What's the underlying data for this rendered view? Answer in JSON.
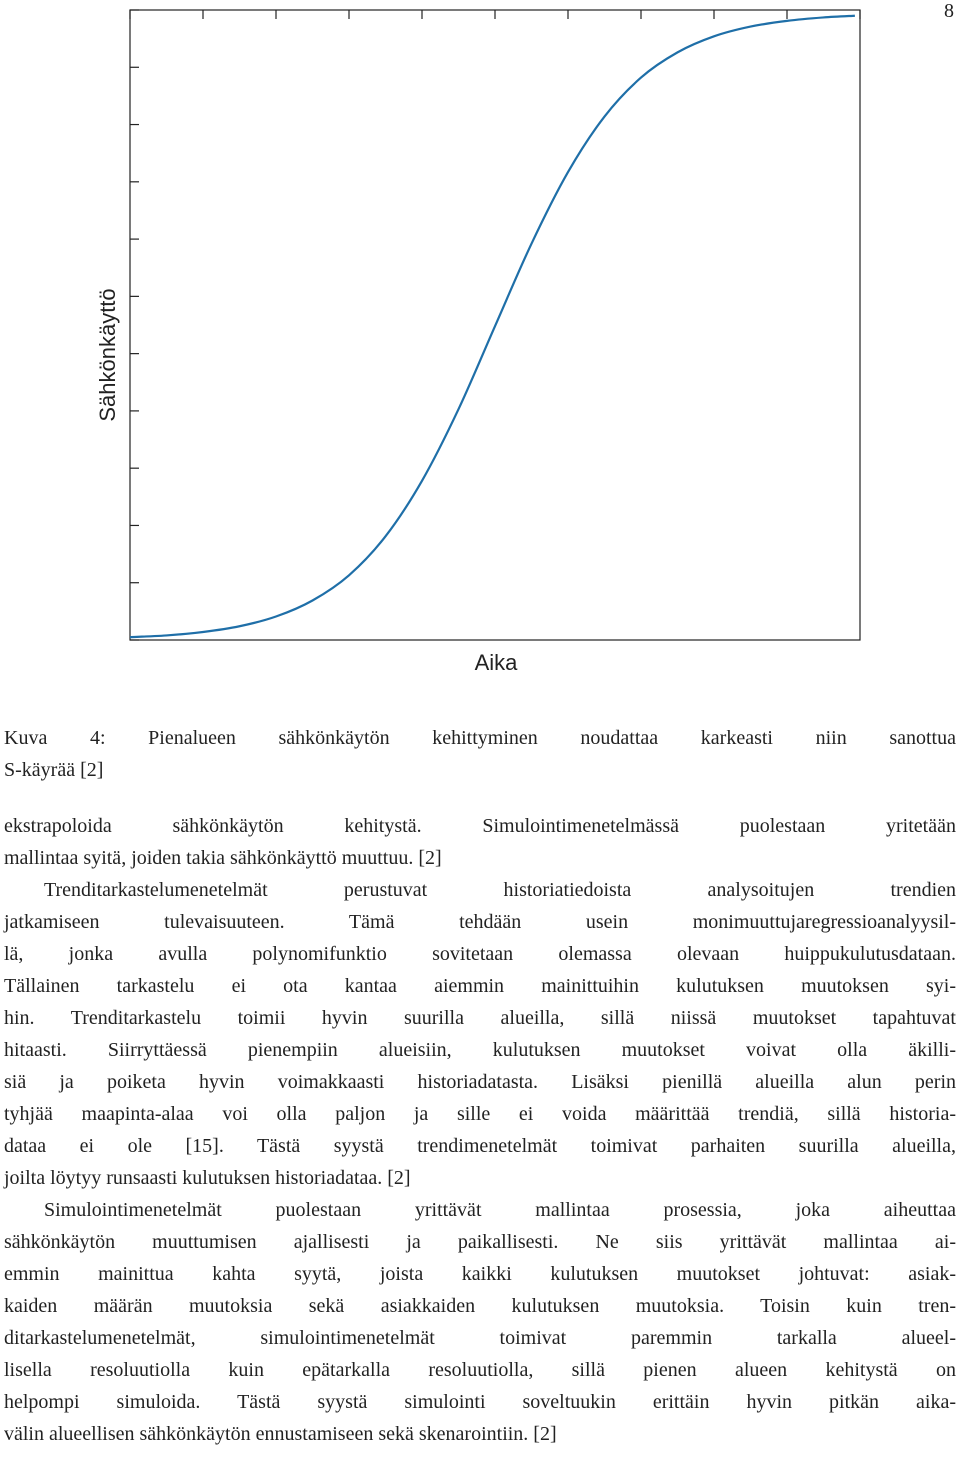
{
  "page_number": "8",
  "chart_data": {
    "type": "line",
    "xlabel": "Aika",
    "ylabel": "Sähkönkäyttö",
    "x": [
      0,
      0.5,
      1,
      1.5,
      2,
      2.5,
      3,
      3.5,
      4,
      4.5,
      5,
      5.5,
      6,
      6.5,
      7,
      7.5,
      8,
      8.5,
      9,
      9.5,
      9.93
    ],
    "values": [
      0.05,
      0.08,
      0.14,
      0.24,
      0.41,
      0.69,
      1.13,
      1.81,
      2.78,
      4.03,
      5.48,
      6.92,
      8.17,
      9.14,
      9.82,
      10.26,
      10.54,
      10.71,
      10.81,
      10.87,
      10.9
    ],
    "color": "#1f6fa8",
    "xlim": [
      0,
      10
    ],
    "ylim": [
      0,
      11
    ],
    "xticks": [
      0,
      1,
      2,
      3,
      4,
      5,
      6,
      7,
      8,
      9,
      10
    ],
    "yticks": [
      0,
      1,
      2,
      3,
      4,
      5,
      6,
      7,
      8,
      9,
      10,
      11
    ]
  },
  "caption": {
    "lines": [
      "Kuva 4: Pienalueen sähkönkäytön kehittyminen noudattaa karkeasti niin sanottua",
      "S-käyrää [2]"
    ]
  },
  "paragraphs": [
    {
      "lines": [
        "ekstrapoloida sähkönkäytön kehitystä. Simulointimenetelmässä puolestaan yritetään",
        "mallintaa syitä, joiden takia sähkönkäyttö muuttuu. [2]"
      ]
    },
    {
      "lines": [
        "Trenditarkastelumenetelmät perustuvat historiatiedoista analysoitujen trendien",
        "jatkamiseen tulevaisuuteen. Tämä tehdään usein monimuuttujaregressioanalyysil-",
        "lä, jonka avulla polynomifunktio sovitetaan olemassa olevaan huippukulutusdataan.",
        "Tällainen tarkastelu ei ota kantaa aiemmin mainittuihin kulutuksen muutoksen syi-",
        "hin. Trenditarkastelu toimii hyvin suurilla alueilla, sillä niissä muutokset tapahtuvat",
        "hitaasti. Siirryttäessä pienempiin alueisiin, kulutuksen muutokset voivat olla äkilli-",
        "siä ja poiketa hyvin voimakkaasti historiadatasta. Lisäksi pienillä alueilla alun perin",
        "tyhjää maapinta-alaa voi olla paljon ja sille ei voida määrittää trendiä, sillä historia-",
        "dataa ei ole [15]. Tästä syystä trendimenetelmät toimivat parhaiten suurilla alueilla,",
        "joilta löytyy runsaasti kulutuksen historiadataa. [2]"
      ]
    },
    {
      "lines": [
        "Simulointimenetelmät puolestaan yrittävät mallintaa prosessia, joka aiheuttaa",
        "sähkönkäytön muuttumisen ajallisesti ja paikallisesti. Ne siis yrittävät mallintaa ai-",
        "emmin mainittua kahta syytä, joista kaikki kulutuksen muutokset johtuvat: asiak-",
        "kaiden määrän muutoksia sekä asiakkaiden kulutuksen muutoksia. Toisin kuin tren-",
        "ditarkastelumenetelmät, simulointimenetelmät toimivat paremmin tarkalla alueel-",
        "lisella resoluutiolla kuin epätarkalla resoluutiolla, sillä pienen alueen kehitystä on",
        "helpompi simuloida. Tästä syystä simulointi soveltuukin erittäin hyvin pitkän aika-",
        "välin alueellisen sähkönkäytön ennustamiseen sekä skenarointiin. [2]"
      ]
    }
  ]
}
